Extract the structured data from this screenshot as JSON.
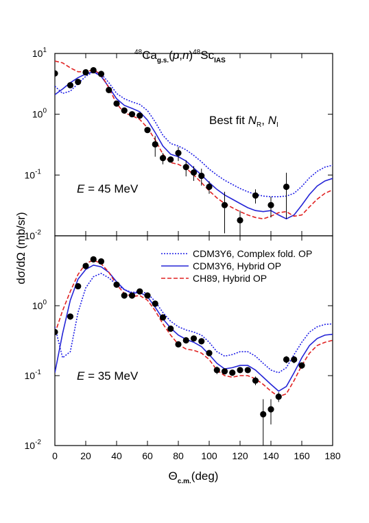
{
  "chart_data": [
    {
      "type": "line",
      "title": [
        "48",
        "Ca",
        "g.s.",
        "(",
        "p",
        ",",
        "n",
        ")",
        "48",
        "Sc",
        "IAS"
      ],
      "annotation": {
        "text": "Best fit",
        "sym1": "N",
        "sub1": "R",
        "sep": ",",
        "sym2": "N",
        "sub2": "I"
      },
      "energy": {
        "symbol": "E",
        "text": "= 45 MeV"
      },
      "ylabel": "dσ/dΩ (mb/sr)",
      "log_y": true,
      "xlim": [
        0,
        180
      ],
      "ylim": [
        0.01,
        10
      ],
      "yticks": [
        {
          "value": 0.01,
          "label": "10",
          "power": "-2"
        },
        {
          "value": 0.1,
          "label": "10",
          "power": "-1"
        },
        {
          "value": 1,
          "label": "10",
          "power": "0"
        },
        {
          "value": 10,
          "label": "10",
          "power": "1"
        }
      ],
      "x": [
        0,
        5,
        10,
        15,
        20,
        25,
        30,
        35,
        40,
        45,
        50,
        55,
        60,
        65,
        70,
        75,
        80,
        85,
        90,
        95,
        100,
        105,
        110,
        115,
        120,
        125,
        130,
        135,
        140,
        145,
        150,
        155,
        160,
        165,
        170,
        175,
        180
      ],
      "series": [
        {
          "name": "CDM3Y6, Complex fold. OP",
          "color": "#1a1ae6",
          "line_style": "dotted",
          "values": [
            2.9,
            2.2,
            2.4,
            3.2,
            4.2,
            5.0,
            4.6,
            3.3,
            2.2,
            1.8,
            1.6,
            1.45,
            1.15,
            0.75,
            0.45,
            0.33,
            0.3,
            0.26,
            0.21,
            0.165,
            0.125,
            0.1,
            0.082,
            0.07,
            0.06,
            0.053,
            0.048,
            0.045,
            0.044,
            0.044,
            0.045,
            0.05,
            0.065,
            0.09,
            0.115,
            0.135,
            0.145
          ]
        },
        {
          "name": "CDM3Y6, Hybrid OP",
          "color": "#2323d6",
          "line_style": "solid",
          "values": [
            2.1,
            2.6,
            3.3,
            4.0,
            4.6,
            5.0,
            4.2,
            2.8,
            1.8,
            1.4,
            1.25,
            1.1,
            0.8,
            0.5,
            0.3,
            0.22,
            0.2,
            0.17,
            0.13,
            0.1,
            0.075,
            0.058,
            0.047,
            0.04,
            0.034,
            0.029,
            0.026,
            0.025,
            0.026,
            0.022,
            0.019,
            0.022,
            0.032,
            0.048,
            0.066,
            0.08,
            0.088
          ]
        },
        {
          "name": "CH89, Hybrid OP",
          "color": "#e02020",
          "line_style": "dashed",
          "values": [
            7.5,
            7.0,
            5.8,
            5.0,
            5.0,
            5.4,
            4.5,
            2.7,
            1.5,
            1.05,
            0.95,
            0.82,
            0.6,
            0.38,
            0.22,
            0.16,
            0.15,
            0.13,
            0.1,
            0.075,
            0.055,
            0.042,
            0.034,
            0.029,
            0.025,
            0.022,
            0.02,
            0.019,
            0.021,
            0.024,
            0.025,
            0.021,
            0.022,
            0.03,
            0.04,
            0.05,
            0.057
          ]
        }
      ],
      "points": {
        "color": "#000000",
        "x": [
          0,
          10,
          15,
          20,
          25,
          30,
          35,
          40,
          45,
          50,
          55,
          60,
          65,
          70,
          75,
          80,
          85,
          90,
          95,
          100,
          110,
          120,
          130,
          140,
          150
        ],
        "values": [
          4.7,
          3.0,
          3.4,
          4.9,
          5.3,
          4.6,
          2.5,
          1.5,
          1.15,
          1.0,
          0.95,
          0.55,
          0.32,
          0.19,
          0.18,
          0.23,
          0.135,
          0.11,
          0.097,
          0.064,
          0.032,
          0.018,
          0.046,
          0.032,
          0.064
        ],
        "errors": [
          0.4,
          0.2,
          0.2,
          0.3,
          0.3,
          0.3,
          0.15,
          0.1,
          0.06,
          0.06,
          0.06,
          0.05,
          0.12,
          0.04,
          0.02,
          0.06,
          0.04,
          0.03,
          0.03,
          0.015,
          0.021,
          0.008,
          0.012,
          0.012,
          0.045
        ]
      }
    },
    {
      "type": "line",
      "energy": {
        "symbol": "E",
        "text": "= 35 MeV"
      },
      "xlabel": {
        "symbol": "Θ",
        "sub": "c.m.",
        "unit": "(deg)"
      },
      "log_y": true,
      "legend": "top-right",
      "xlim": [
        0,
        180
      ],
      "ylim": [
        0.01,
        10
      ],
      "xticks": [
        0,
        20,
        40,
        60,
        80,
        100,
        120,
        140,
        160,
        180
      ],
      "yticks": [
        {
          "value": 0.01,
          "label": "10",
          "power": "-2"
        },
        {
          "value": 0.1,
          "label": "10",
          "power": "-1"
        },
        {
          "value": 1,
          "label": "10",
          "power": "0"
        }
      ],
      "x": [
        0,
        5,
        10,
        15,
        20,
        25,
        30,
        35,
        40,
        45,
        50,
        55,
        60,
        65,
        70,
        75,
        80,
        85,
        90,
        95,
        100,
        105,
        110,
        115,
        120,
        125,
        130,
        135,
        140,
        145,
        150,
        155,
        160,
        165,
        170,
        175,
        180
      ],
      "series": [
        {
          "name": "CDM3Y6, Complex fold. OP",
          "color": "#1a1ae6",
          "line_style": "dotted",
          "values": [
            0.5,
            0.18,
            0.22,
            0.8,
            1.8,
            2.6,
            2.9,
            2.5,
            2.0,
            1.7,
            1.55,
            1.6,
            1.5,
            1.15,
            0.8,
            0.6,
            0.5,
            0.45,
            0.42,
            0.38,
            0.3,
            0.22,
            0.19,
            0.2,
            0.22,
            0.22,
            0.19,
            0.15,
            0.12,
            0.11,
            0.13,
            0.2,
            0.3,
            0.42,
            0.5,
            0.54,
            0.55
          ]
        },
        {
          "name": "CDM3Y6, Hybrid OP",
          "color": "#2323d6",
          "line_style": "solid",
          "values": [
            0.11,
            0.4,
            1.2,
            2.4,
            3.3,
            3.8,
            3.6,
            3.0,
            2.2,
            1.7,
            1.5,
            1.55,
            1.35,
            0.95,
            0.65,
            0.48,
            0.38,
            0.33,
            0.3,
            0.26,
            0.2,
            0.15,
            0.125,
            0.13,
            0.14,
            0.14,
            0.12,
            0.095,
            0.075,
            0.06,
            0.07,
            0.11,
            0.18,
            0.27,
            0.34,
            0.38,
            0.39
          ]
        },
        {
          "name": "CH89, Hybrid OP",
          "color": "#e02020",
          "line_style": "dashed",
          "values": [
            0.4,
            0.85,
            1.6,
            2.8,
            4.0,
            4.5,
            4.0,
            3.0,
            2.0,
            1.5,
            1.35,
            1.4,
            1.2,
            0.85,
            0.55,
            0.38,
            0.28,
            0.24,
            0.23,
            0.21,
            0.17,
            0.12,
            0.1,
            0.095,
            0.1,
            0.1,
            0.09,
            0.075,
            0.06,
            0.05,
            0.055,
            0.085,
            0.14,
            0.21,
            0.27,
            0.3,
            0.32
          ]
        }
      ],
      "points": {
        "color": "#000000",
        "x": [
          0,
          10,
          15,
          20,
          25,
          30,
          40,
          45,
          50,
          55,
          60,
          65,
          70,
          75,
          80,
          85,
          90,
          95,
          100,
          105,
          110,
          115,
          120,
          125,
          130,
          135,
          140,
          145,
          150,
          155,
          160
        ],
        "values": [
          0.42,
          0.7,
          1.9,
          3.7,
          4.6,
          4.3,
          2.0,
          1.4,
          1.4,
          1.6,
          1.4,
          1.07,
          0.68,
          0.47,
          0.28,
          0.32,
          0.34,
          0.31,
          0.21,
          0.12,
          0.115,
          0.11,
          0.12,
          0.12,
          0.085,
          0.028,
          0.033,
          0.05,
          0.17,
          0.17,
          0.14
        ],
        "errors": [
          0.04,
          0.07,
          0.15,
          0.3,
          0.4,
          0.4,
          0.15,
          0.1,
          0.1,
          0.12,
          0.1,
          0.08,
          0.05,
          0.04,
          0.02,
          0.03,
          0.03,
          0.03,
          0.02,
          0.015,
          0.01,
          0.01,
          0.01,
          0.01,
          0.012,
          0.018,
          0.013,
          0.008,
          0.02,
          0.02,
          0.015
        ]
      }
    }
  ]
}
